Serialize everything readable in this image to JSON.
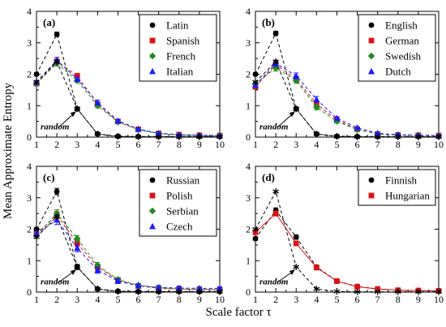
{
  "figure": {
    "ylabel": "Mean  Approximate Entropy",
    "xlabel": "Scale factor  τ"
  },
  "chart_data": [
    {
      "type": "line",
      "panel_label": "(a)",
      "annotation": "random",
      "x": [
        1,
        2,
        3,
        4,
        5,
        6,
        7,
        8,
        9,
        10
      ],
      "xlim": [
        1,
        10
      ],
      "ylim": [
        0,
        4
      ],
      "xticks": [
        1,
        2,
        3,
        4,
        5,
        6,
        7,
        8,
        9,
        10
      ],
      "yticks": [
        0,
        1,
        2,
        3,
        4
      ],
      "grid": false,
      "legend_position": "top-right",
      "series": [
        {
          "name": "Latin",
          "color": "#000000",
          "marker": "circle",
          "line": "dash",
          "values": [
            2.0,
            3.27,
            0.9,
            0.1,
            0.03,
            0.02,
            0.02,
            0.02,
            0.02,
            0.02
          ],
          "errors": [
            0.05,
            0.07,
            0.06,
            0.02,
            0.01,
            0.01,
            0.01,
            0.01,
            0.01,
            0.01
          ]
        },
        {
          "name": "Spanish",
          "color": "#e01010",
          "marker": "square",
          "line": "dash",
          "values": [
            1.7,
            2.4,
            1.95,
            1.05,
            0.5,
            0.25,
            0.12,
            0.08,
            0.06,
            0.05
          ],
          "errors": [
            0.05,
            0.09,
            0.08,
            0.07,
            0.04,
            0.03,
            0.02,
            0.02,
            0.01,
            0.01
          ]
        },
        {
          "name": "French",
          "color": "#1e8c1e",
          "marker": "diamond",
          "line": "dash",
          "values": [
            1.7,
            2.35,
            1.8,
            1.0,
            0.48,
            0.24,
            0.11,
            0.07,
            0.05,
            0.05
          ],
          "errors": [
            0.05,
            0.09,
            0.07,
            0.07,
            0.04,
            0.03,
            0.02,
            0.02,
            0.01,
            0.01
          ]
        },
        {
          "name": "Italian",
          "color": "#1a1aff",
          "marker": "triangle",
          "line": "dash",
          "values": [
            1.75,
            2.45,
            1.85,
            1.1,
            0.52,
            0.26,
            0.12,
            0.08,
            0.06,
            0.05
          ],
          "errors": [
            0.05,
            0.09,
            0.08,
            0.08,
            0.04,
            0.03,
            0.02,
            0.02,
            0.01,
            0.01
          ]
        },
        {
          "name": "",
          "color": "#000000",
          "marker": "star",
          "line": "dash",
          "values": [
            1.75,
            2.4,
            0.9,
            0.1,
            0.02,
            0.01,
            0.01,
            0.01,
            0.01,
            0.01
          ],
          "errors": [
            0,
            0,
            0,
            0,
            0,
            0,
            0,
            0,
            0,
            0
          ]
        }
      ]
    },
    {
      "type": "line",
      "panel_label": "(b)",
      "annotation": "random",
      "x": [
        1,
        2,
        3,
        4,
        5,
        6,
        7,
        8,
        9,
        10
      ],
      "xlim": [
        1,
        10
      ],
      "ylim": [
        0,
        4
      ],
      "xticks": [
        1,
        2,
        3,
        4,
        5,
        6,
        7,
        8,
        9,
        10
      ],
      "yticks": [
        0,
        1,
        2,
        3,
        4
      ],
      "grid": false,
      "legend_position": "top-right",
      "series": [
        {
          "name": "English",
          "color": "#000000",
          "marker": "circle",
          "line": "dash",
          "values": [
            2.0,
            3.3,
            0.9,
            0.1,
            0.03,
            0.02,
            0.02,
            0.02,
            0.02,
            0.02
          ],
          "errors": [
            0.05,
            0.07,
            0.06,
            0.02,
            0.01,
            0.01,
            0.01,
            0.01,
            0.01,
            0.01
          ]
        },
        {
          "name": "German",
          "color": "#e01010",
          "marker": "square",
          "line": "dash",
          "values": [
            1.6,
            2.3,
            1.85,
            1.05,
            0.55,
            0.25,
            0.1,
            0.07,
            0.06,
            0.05
          ],
          "errors": [
            0.06,
            0.1,
            0.09,
            0.09,
            0.05,
            0.03,
            0.02,
            0.02,
            0.01,
            0.01
          ]
        },
        {
          "name": "Swedish",
          "color": "#1e8c1e",
          "marker": "diamond",
          "line": "dash",
          "values": [
            1.7,
            2.2,
            1.8,
            0.95,
            0.5,
            0.24,
            0.1,
            0.07,
            0.06,
            0.05
          ],
          "errors": [
            0.06,
            0.1,
            0.08,
            0.08,
            0.05,
            0.03,
            0.02,
            0.02,
            0.01,
            0.01
          ]
        },
        {
          "name": "Dutch",
          "color": "#1a1aff",
          "marker": "triangle",
          "line": "dash",
          "values": [
            1.65,
            2.35,
            1.95,
            1.2,
            0.6,
            0.3,
            0.12,
            0.08,
            0.06,
            0.05
          ],
          "errors": [
            0.06,
            0.1,
            0.09,
            0.09,
            0.05,
            0.03,
            0.02,
            0.02,
            0.01,
            0.01
          ]
        },
        {
          "name": "",
          "color": "#000000",
          "marker": "star",
          "line": "dash",
          "values": [
            1.75,
            2.4,
            0.9,
            0.1,
            0.02,
            0.01,
            0.01,
            0.01,
            0.01,
            0.01
          ],
          "errors": [
            0,
            0,
            0,
            0,
            0,
            0,
            0,
            0,
            0,
            0
          ]
        }
      ]
    },
    {
      "type": "line",
      "panel_label": "(c)",
      "annotation": "random",
      "x": [
        1,
        2,
        3,
        4,
        5,
        6,
        7,
        8,
        9,
        10
      ],
      "xlim": [
        1,
        10
      ],
      "ylim": [
        0,
        4
      ],
      "xticks": [
        1,
        2,
        3,
        4,
        5,
        6,
        7,
        8,
        9,
        10
      ],
      "yticks": [
        0,
        1,
        2,
        3,
        4
      ],
      "grid": false,
      "legend_position": "top-right",
      "series": [
        {
          "name": "Russian",
          "color": "#000000",
          "marker": "circle",
          "line": "dash",
          "values": [
            2.0,
            3.2,
            0.8,
            0.1,
            0.03,
            0.02,
            0.02,
            0.02,
            0.02,
            0.02
          ],
          "errors": [
            0.05,
            0.1,
            0.08,
            0.02,
            0.01,
            0.01,
            0.01,
            0.01,
            0.01,
            0.01
          ]
        },
        {
          "name": "Polish",
          "color": "#e01010",
          "marker": "square",
          "line": "dash",
          "values": [
            1.85,
            2.45,
            1.55,
            0.8,
            0.38,
            0.2,
            0.12,
            0.1,
            0.08,
            0.08
          ],
          "errors": [
            0.08,
            0.12,
            0.1,
            0.09,
            0.06,
            0.05,
            0.05,
            0.05,
            0.04,
            0.04
          ]
        },
        {
          "name": "Serbian",
          "color": "#1e8c1e",
          "marker": "diamond",
          "line": "dash",
          "values": [
            1.8,
            2.5,
            1.7,
            0.85,
            0.4,
            0.22,
            0.14,
            0.1,
            0.09,
            0.08
          ],
          "errors": [
            0.08,
            0.12,
            0.1,
            0.09,
            0.06,
            0.05,
            0.05,
            0.05,
            0.04,
            0.04
          ]
        },
        {
          "name": "Czech",
          "color": "#1a1aff",
          "marker": "triangle",
          "line": "dash",
          "values": [
            1.85,
            2.3,
            1.4,
            0.7,
            0.35,
            0.2,
            0.15,
            0.13,
            0.12,
            0.12
          ],
          "errors": [
            0.08,
            0.15,
            0.12,
            0.1,
            0.07,
            0.06,
            0.06,
            0.06,
            0.05,
            0.05
          ]
        },
        {
          "name": "",
          "color": "#000000",
          "marker": "star",
          "line": "dash",
          "values": [
            1.75,
            2.4,
            0.8,
            0.1,
            0.02,
            0.01,
            0.01,
            0.01,
            0.01,
            0.01
          ],
          "errors": [
            0,
            0,
            0,
            0,
            0,
            0,
            0,
            0,
            0,
            0
          ]
        }
      ]
    },
    {
      "type": "line",
      "panel_label": "(d)",
      "annotation": "random",
      "x": [
        1,
        2,
        3,
        4,
        5,
        6,
        7,
        8,
        9,
        10
      ],
      "xlim": [
        1,
        10
      ],
      "ylim": [
        0,
        4
      ],
      "xticks": [
        1,
        2,
        3,
        4,
        5,
        6,
        7,
        8,
        9,
        10
      ],
      "yticks": [
        0,
        1,
        2,
        3,
        4
      ],
      "grid": false,
      "legend_position": "top-right",
      "series": [
        {
          "name": "Finnish",
          "color": "#000000",
          "marker": "circle",
          "line": "dash",
          "values": [
            1.7,
            2.6,
            1.75,
            0.8,
            0.35,
            0.18,
            0.1,
            0.06,
            0.05,
            0.04
          ],
          "errors": [
            0.05,
            0.08,
            0.07,
            0.06,
            0.04,
            0.03,
            0.02,
            0.02,
            0.01,
            0.01
          ]
        },
        {
          "name": "Hungarian",
          "color": "#e01010",
          "marker": "square",
          "line": "solid",
          "values": [
            1.9,
            2.5,
            1.55,
            0.78,
            0.35,
            0.17,
            0.1,
            0.06,
            0.05,
            0.04
          ],
          "errors": [
            0.06,
            0.08,
            0.07,
            0.06,
            0.04,
            0.03,
            0.02,
            0.02,
            0.01,
            0.01
          ]
        },
        {
          "name": "",
          "color": "#000000",
          "marker": "star",
          "line": "dash",
          "values": [
            2.0,
            3.2,
            0.8,
            0.1,
            0.02,
            0.01,
            0.01,
            0.01,
            0.01,
            0.01
          ],
          "errors": [
            0,
            0,
            0,
            0,
            0,
            0,
            0,
            0,
            0,
            0
          ]
        }
      ]
    }
  ]
}
